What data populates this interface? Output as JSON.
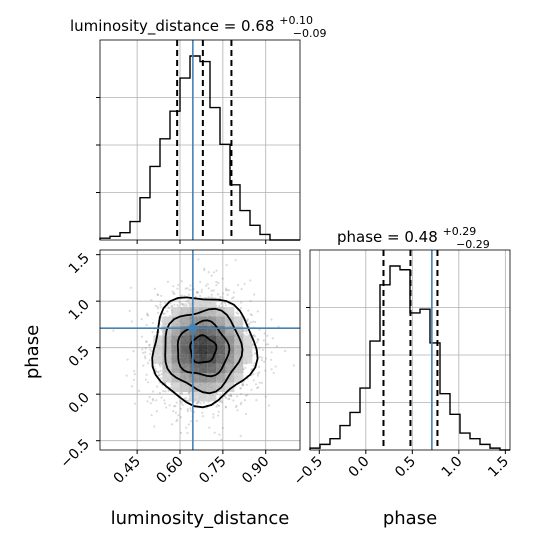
{
  "chart_data": {
    "type": "corner",
    "parameters": [
      {
        "name": "luminosity_distance",
        "title": "luminosity_distance = 0.68",
        "title_main": "luminosity_distance = 0.68",
        "title_sup": "+0.10",
        "title_sub": "−0.09",
        "median": 0.68,
        "q_low": 0.59,
        "q_high": 0.78,
        "truth": 0.645,
        "range": [
          0.32,
          1.02
        ],
        "ticks": [
          "0.45",
          "0.60",
          "0.75",
          "0.90"
        ],
        "tick_values": [
          0.45,
          0.6,
          0.75,
          0.9
        ],
        "hist_edges_start": 0.32,
        "hist_bin_width": 0.035,
        "hist_counts": [
          1,
          2,
          4,
          10,
          23,
          40,
          55,
          70,
          88,
          100,
          97,
          72,
          52,
          30,
          16,
          8,
          3,
          0,
          0,
          0
        ]
      },
      {
        "name": "phase",
        "title": "phase = 0.48",
        "title_main": "phase = 0.48",
        "title_sup": "+0.29",
        "title_sub": "−0.29",
        "median": 0.48,
        "q_low": 0.19,
        "q_high": 0.77,
        "truth": 0.71,
        "range": [
          -0.6,
          1.55
        ],
        "ticks": [
          "−0.5",
          "0.0",
          "0.5",
          "1.0",
          "1.5"
        ],
        "tick_values": [
          -0.5,
          0.0,
          0.5,
          1.0,
          1.5
        ],
        "hist_edges_start": -0.6,
        "hist_bin_width": 0.1075,
        "hist_counts": [
          1,
          3,
          6,
          13,
          20,
          33,
          58,
          88,
          98,
          96,
          73,
          75,
          57,
          30,
          19,
          9,
          6,
          3,
          1,
          0
        ]
      }
    ],
    "scatter_2d": {
      "x_param": "luminosity_distance",
      "y_param": "phase",
      "x_ticks": [
        "0.45",
        "0.60",
        "0.75",
        "0.90"
      ],
      "y_ticks": [
        "−0.5",
        "0.0",
        "0.5",
        "1.0",
        "1.5"
      ],
      "truth_point": [
        0.645,
        0.71
      ],
      "center": [
        0.68,
        0.48
      ],
      "spread": [
        0.09,
        0.29
      ]
    },
    "xlabels": [
      "luminosity_distance",
      "phase"
    ],
    "ylabel": "phase",
    "grid": true,
    "colors": {
      "truth": "#4682b4",
      "hist": "#000000",
      "scatter": "#7f7f7f"
    }
  }
}
